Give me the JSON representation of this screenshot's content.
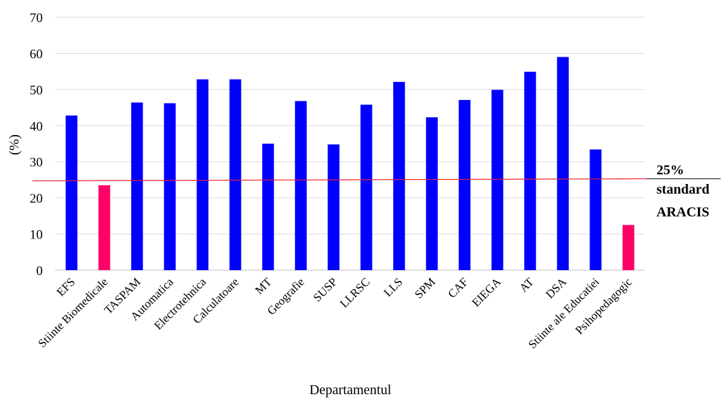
{
  "chart_data": {
    "type": "bar",
    "title": "",
    "xlabel": "Departamentul",
    "ylabel": "(%)",
    "ylim": [
      0,
      70
    ],
    "yticks": [
      0,
      10,
      20,
      30,
      40,
      50,
      60,
      70
    ],
    "grid": true,
    "categories": [
      "EFS",
      "Stiinte Biomedicale",
      "TASPAM",
      "Automatica",
      "Electrotehnica",
      "Calculatoare",
      "MT",
      "Geografie",
      "SUSP",
      "LLRSC",
      "LLS",
      "SPM",
      "CAF",
      "EIEGA",
      "AT",
      "DSA",
      "Stiinte ale Educatiei",
      "Psihopedagogic"
    ],
    "values": [
      42.8,
      23.5,
      46.4,
      46.2,
      52.8,
      52.8,
      35.0,
      46.8,
      34.8,
      45.8,
      52.1,
      42.3,
      47.1,
      49.9,
      54.9,
      59.0,
      33.4,
      12.5
    ],
    "bar_colors": {
      "above": "#0000ff",
      "below": "#ff0066"
    },
    "reference_line": {
      "value": 25,
      "color": "#e8202a",
      "label_lines": [
        "25%",
        "standard",
        "ARACIS"
      ]
    }
  }
}
